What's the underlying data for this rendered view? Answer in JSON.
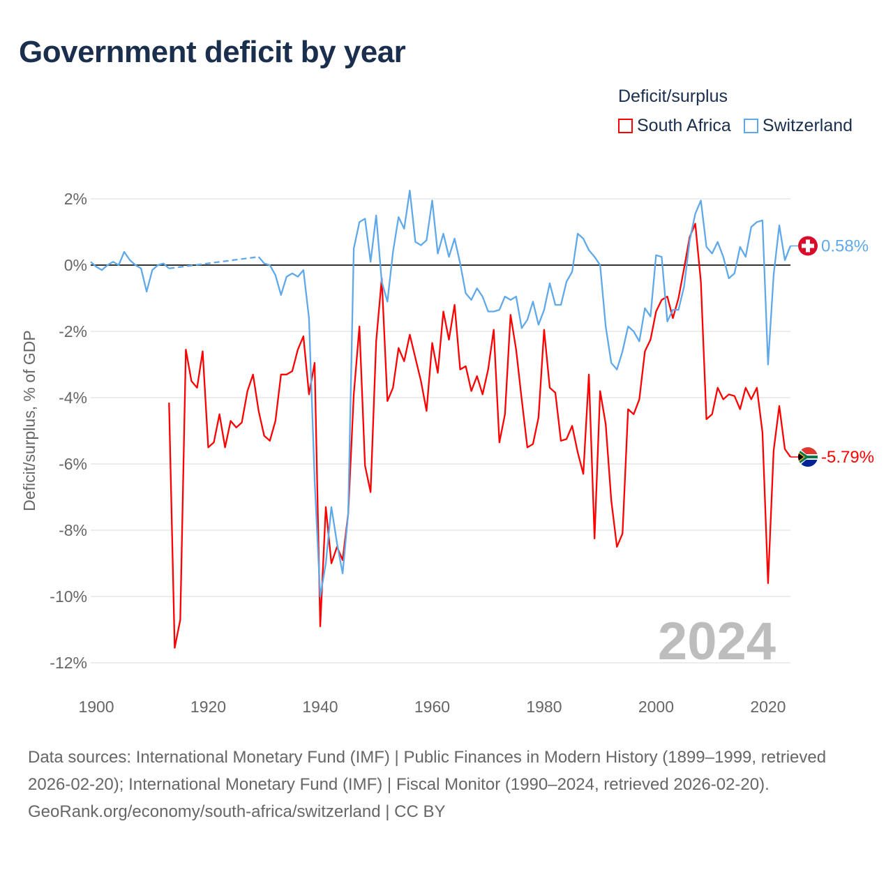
{
  "title": "Government deficit by year",
  "legend": {
    "title": "Deficit/surplus",
    "items": [
      {
        "label": "South Africa",
        "color": "#ff0000"
      },
      {
        "label": "Switzerland",
        "color": "#5fa8ea"
      }
    ]
  },
  "footer": {
    "sources": "Data sources: International Monetary Fund (IMF) | Public Finances in Modern History (1899–1999, retrieved 2026-02-20); International Monetary Fund (IMF) | Fiscal Monitor (1990–2024, retrieved 2026-02-20).",
    "attribution": "GeoRank.org/economy/south-africa/switzerland | CC BY"
  },
  "chart_data": {
    "type": "line",
    "title": "Government deficit by year",
    "xlabel": "",
    "ylabel": "Deficit/surplus, % of GDP",
    "xlim": [
      1899,
      2024
    ],
    "ylim": [
      -12.5,
      2.5
    ],
    "x_ticks": [
      1900,
      1920,
      1940,
      1960,
      1980,
      2000,
      2020
    ],
    "y_ticks": [
      2,
      0,
      -2,
      -4,
      -6,
      -8,
      -10,
      -12
    ],
    "y_tick_labels": [
      "2%",
      "0%",
      "-2%",
      "-4%",
      "-6%",
      "-8%",
      "-10%",
      "-12%"
    ],
    "grid": true,
    "legend_position": "top-right",
    "current_year_label": "2024",
    "start_year": 1899,
    "series": [
      {
        "name": "South Africa",
        "color": "#ff0000",
        "end_label": "-5.79%",
        "flag": "south-africa",
        "values": [
          null,
          null,
          null,
          null,
          null,
          null,
          null,
          null,
          null,
          null,
          null,
          null,
          null,
          null,
          -4.15,
          -11.55,
          -10.7,
          -2.55,
          -3.5,
          -3.7,
          -2.6,
          -5.5,
          -5.35,
          -4.5,
          -5.5,
          -4.7,
          -4.9,
          -4.75,
          -3.8,
          -3.3,
          -4.4,
          -5.15,
          -5.3,
          -4.7,
          -3.3,
          -3.3,
          -3.2,
          -2.55,
          -2.15,
          -3.9,
          -2.95,
          -10.9,
          -7.3,
          -9.0,
          -8.5,
          -8.9,
          -7.5,
          -3.9,
          -1.85,
          -6.05,
          -6.85,
          -2.3,
          -0.4,
          -4.1,
          -3.7,
          -2.5,
          -2.9,
          -2.1,
          -2.8,
          -3.5,
          -4.4,
          -2.35,
          -3.25,
          -1.4,
          -2.25,
          -1.2,
          -3.15,
          -3.05,
          -3.8,
          -3.35,
          -3.9,
          -3.15,
          -1.95,
          -5.35,
          -4.5,
          -1.5,
          -2.55,
          -4.05,
          -5.5,
          -5.4,
          -4.6,
          -1.95,
          -3.7,
          -3.85,
          -5.3,
          -5.25,
          -4.85,
          -5.65,
          -6.3,
          -3.3,
          -8.25,
          -3.8,
          -4.8,
          -7.1,
          -8.5,
          -8.1,
          -4.35,
          -4.5,
          -4.05,
          -2.6,
          -2.25,
          -1.4,
          -1.05,
          -0.95,
          -1.6,
          -1.0,
          -0.1,
          0.85,
          1.25,
          -0.5,
          -4.65,
          -4.5,
          -3.7,
          -4.05,
          -3.9,
          -3.95,
          -4.35,
          -3.7,
          -4.05,
          -3.7,
          -5.05,
          -9.6,
          -5.6,
          -4.25,
          -5.55,
          -5.79
        ]
      },
      {
        "name": "Switzerland",
        "color": "#5fa8ea",
        "end_label": "0.58%",
        "flag": "switzerland",
        "values": [
          0.1,
          -0.05,
          -0.15,
          0.0,
          0.1,
          0.0,
          0.4,
          0.15,
          0.0,
          -0.1,
          -0.8,
          -0.15,
          0.0,
          0.05,
          -0.1,
          null,
          null,
          null,
          null,
          null,
          null,
          null,
          null,
          null,
          null,
          null,
          null,
          null,
          null,
          null,
          0.25,
          0.05,
          0.0,
          -0.3,
          -0.9,
          -0.35,
          -0.25,
          -0.35,
          -0.15,
          -1.6,
          -6.5,
          -10.0,
          -9.0,
          -7.3,
          -8.4,
          -9.3,
          -7.5,
          0.5,
          1.3,
          1.4,
          0.1,
          1.5,
          -0.5,
          -1.1,
          0.4,
          1.45,
          1.1,
          2.25,
          0.7,
          0.6,
          0.75,
          1.95,
          0.35,
          0.95,
          0.25,
          0.8,
          0.05,
          -0.85,
          -1.05,
          -0.7,
          -0.95,
          -1.4,
          -1.4,
          -1.35,
          -0.95,
          -1.05,
          -0.95,
          -1.9,
          -1.65,
          -1.1,
          -1.8,
          -1.35,
          -0.55,
          -1.2,
          -1.2,
          -0.5,
          -0.2,
          0.95,
          0.8,
          0.45,
          0.25,
          0.0,
          -1.85,
          -2.95,
          -3.15,
          -2.6,
          -1.85,
          -2.0,
          -2.3,
          -1.3,
          -1.55,
          0.3,
          0.25,
          -1.7,
          -1.35,
          -1.35,
          -0.65,
          0.75,
          1.55,
          1.95,
          0.55,
          0.35,
          0.7,
          0.25,
          -0.4,
          -0.25,
          0.55,
          0.25,
          1.15,
          1.3,
          1.35,
          -3.0,
          -0.3,
          1.2,
          0.15,
          0.58
        ]
      }
    ]
  }
}
